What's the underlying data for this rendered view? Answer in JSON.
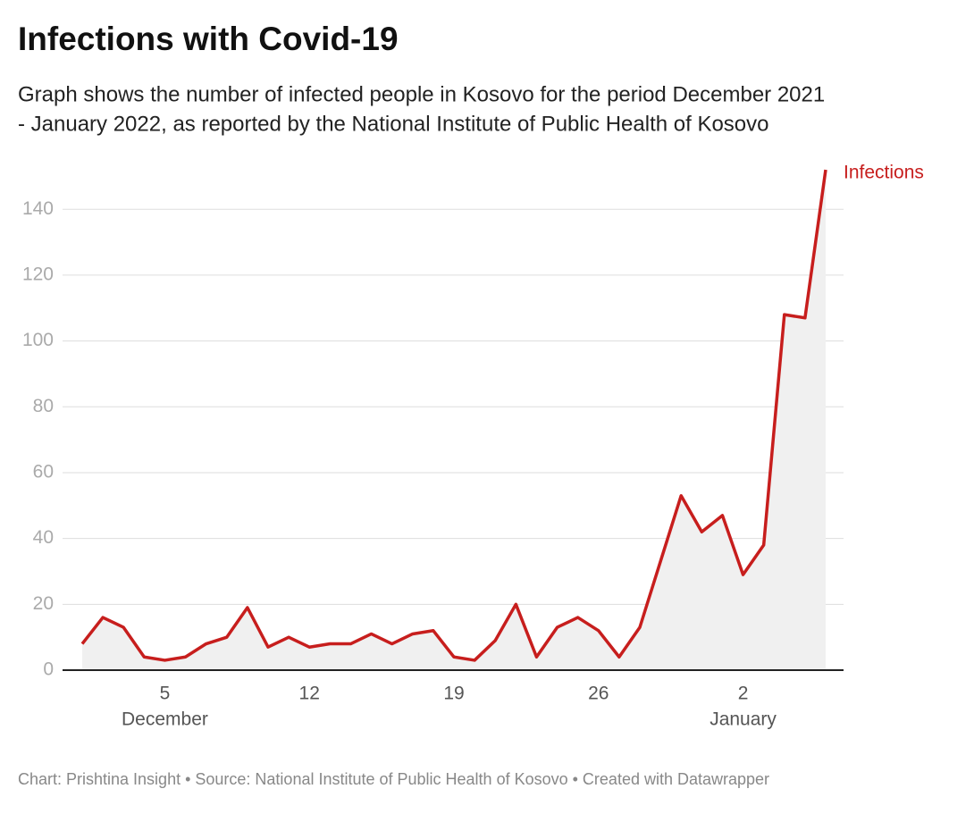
{
  "chart_data": {
    "type": "area-line",
    "title": "Infections with Covid-19",
    "subtitle": [
      "Graph shows the number of infected people in Kosovo for the period December 2021",
      "- January 2022, as reported by the National Institute of Public Health of Kosovo"
    ],
    "footer": "Chart: Prishtina Insight • Source: National Institute of Public Health of Kosovo • Created with Datawrapper",
    "categories": [
      null,
      null,
      null,
      null,
      "5",
      null,
      null,
      null,
      null,
      null,
      null,
      "12",
      null,
      null,
      null,
      null,
      null,
      null,
      "19",
      null,
      null,
      null,
      null,
      null,
      null,
      "26",
      null,
      null,
      null,
      null,
      null,
      null,
      "2",
      null,
      null,
      null,
      null
    ],
    "month_labels": [
      null,
      null,
      null,
      null,
      "December",
      null,
      null,
      null,
      null,
      null,
      null,
      null,
      null,
      null,
      null,
      null,
      null,
      null,
      null,
      null,
      null,
      null,
      null,
      null,
      null,
      null,
      null,
      null,
      null,
      null,
      null,
      null,
      "January",
      null,
      null,
      null,
      null
    ],
    "series": [
      {
        "name": "Infections",
        "color": "#c71e1d",
        "values": [
          8,
          16,
          13,
          4,
          3,
          4,
          8,
          10,
          19,
          7,
          10,
          7,
          8,
          8,
          11,
          8,
          11,
          12,
          4,
          3,
          9,
          20,
          4,
          13,
          16,
          12,
          4,
          13,
          33,
          53,
          42,
          47,
          29,
          38,
          108,
          107,
          152
        ]
      }
    ],
    "area_color": "#f0f0f0",
    "ylim": [
      0,
      152
    ],
    "yticks": [
      0,
      20,
      40,
      60,
      80,
      100,
      120,
      140
    ],
    "grid": true
  }
}
